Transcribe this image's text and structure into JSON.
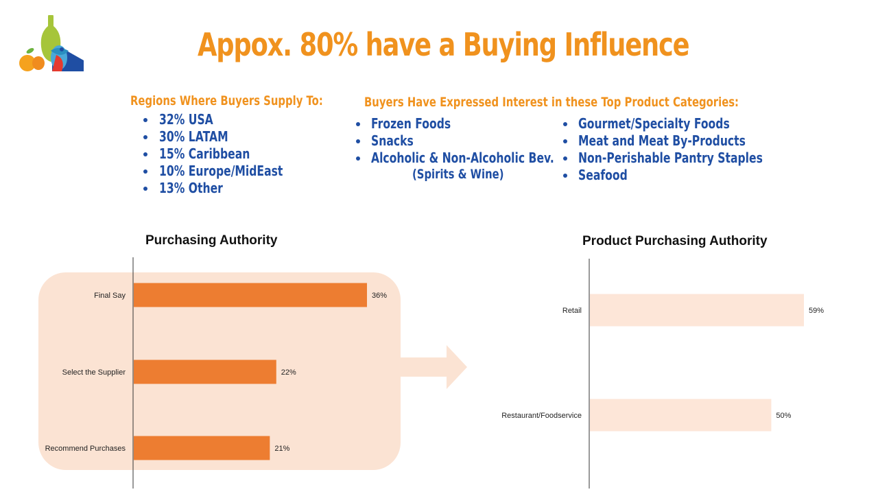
{
  "title": "Appox. 80% have a Buying Influence",
  "regions": {
    "heading": "Regions Where Buyers Supply To:",
    "items": [
      "32% USA",
      "30% LATAM",
      "15% Caribbean",
      "10% Europe/MidEast",
      "13% Other"
    ]
  },
  "categories": {
    "heading": "Buyers Have Expressed Interest in these Top Product Categories:",
    "left": [
      "Frozen Foods",
      "Snacks",
      "Alcoholic & Non-Alcoholic Bev."
    ],
    "note": "(Spirits & Wine)",
    "right": [
      "Gourmet/Specialty Foods",
      "Meat and Meat By-Products",
      "Non-Perishable Pantry Staples",
      "Seafood"
    ]
  },
  "colors": {
    "accent_orange": "#f0921e",
    "text_blue": "#1f4ea3",
    "bar_orange": "#ed7d31",
    "bar_light": "#fde6d8",
    "panel": "#fbe3d3"
  },
  "chart_data": [
    {
      "type": "bar",
      "orientation": "horizontal",
      "title": "Purchasing Authority",
      "categories": [
        "Final Say",
        "Select the Supplier",
        "Recommend Purchases"
      ],
      "values": [
        36,
        22,
        21
      ],
      "value_labels": [
        "36%",
        "22%",
        "21%"
      ],
      "xlim": [
        0,
        40
      ],
      "grid": false,
      "color": "#ed7d31"
    },
    {
      "type": "bar",
      "orientation": "horizontal",
      "title": "Product Purchasing Authority",
      "categories": [
        "Retail",
        "Restaurant/Foodservice"
      ],
      "values": [
        59,
        50
      ],
      "value_labels": [
        "59%",
        "50%"
      ],
      "xlim": [
        0,
        66
      ],
      "grid": false,
      "color": "#fde6d8"
    }
  ]
}
